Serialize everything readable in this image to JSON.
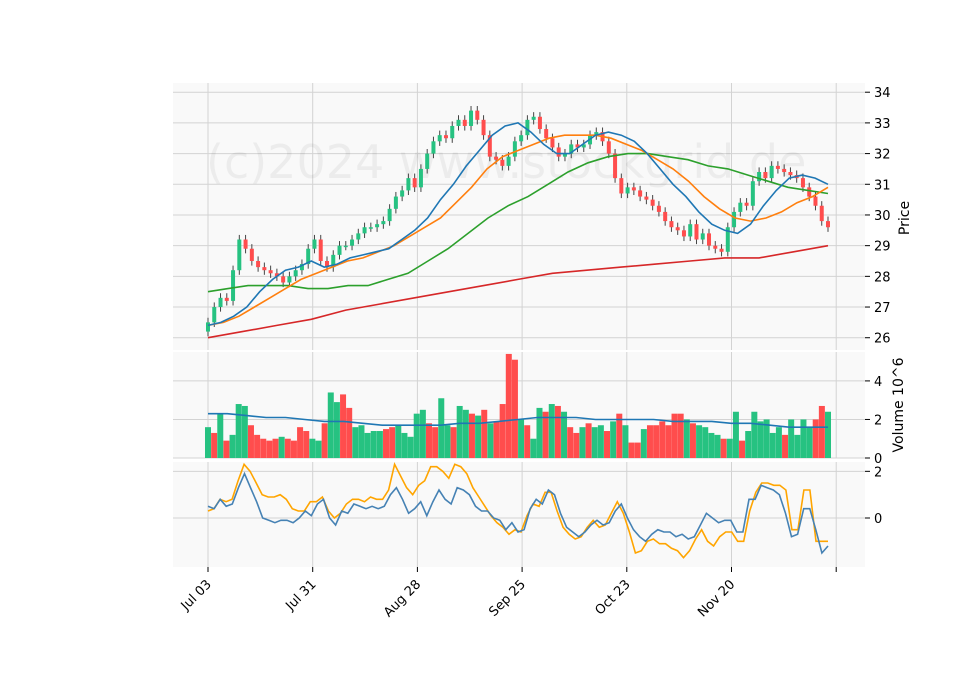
{
  "watermark": "(c)2024 www.stockgrid.de",
  "colors": {
    "up": "#26c281",
    "down": "#ff4d4d",
    "ma10": "#1f77b4",
    "ma20": "#ff7f0e",
    "ma50": "#2ca02c",
    "ma200": "#d62728",
    "vol_ma": "#1f77b4",
    "ind_fast": "#4682b4",
    "ind_slow": "#ffa500",
    "grid": "#d3d3d3",
    "panel_bg": "#f9f9f9"
  },
  "chart_data": {
    "type": "candlestick",
    "x_ticks": [
      "Jul 03",
      "Jul 31",
      "Aug 28",
      "Sep 25",
      "Oct 23",
      "Nov 20"
    ],
    "price_panel": {
      "ylabel": "Price",
      "ylim": [
        25.6,
        34.3
      ],
      "yticks": [
        "26",
        "27",
        "28",
        "29",
        "30",
        "31",
        "32",
        "33",
        "34"
      ],
      "close_path": [
        26.5,
        27.0,
        27.3,
        27.2,
        28.2,
        29.2,
        28.9,
        28.5,
        28.3,
        28.2,
        28.1,
        28.0,
        27.8,
        28.0,
        28.2,
        28.4,
        28.9,
        29.2,
        28.5,
        28.3,
        28.7,
        29.0,
        29.0,
        29.2,
        29.4,
        29.6,
        29.6,
        29.7,
        29.8,
        30.2,
        30.6,
        30.8,
        31.2,
        30.9,
        31.5,
        32.0,
        32.4,
        32.6,
        32.5,
        32.9,
        33.1,
        32.9,
        33.4,
        33.1,
        32.6,
        31.9,
        31.8,
        31.6,
        31.9,
        32.4,
        32.6,
        33.1,
        33.2,
        32.8,
        32.5,
        32.2,
        31.9,
        32.0,
        32.3,
        32.2,
        32.3,
        32.6,
        32.7,
        32.4,
        32.0,
        31.2,
        30.7,
        30.9,
        30.8,
        30.6,
        30.5,
        30.3,
        30.1,
        29.8,
        29.6,
        29.5,
        29.3,
        29.7,
        29.2,
        29.4,
        29.0,
        28.9,
        28.8,
        29.6,
        30.1,
        30.4,
        30.3,
        31.1,
        31.4,
        31.2,
        31.6,
        31.5,
        31.4,
        31.3,
        31.2,
        30.9,
        30.6,
        30.3,
        29.8,
        29.6
      ],
      "ma10": [
        26.4,
        26.5,
        26.7,
        27.0,
        27.5,
        27.9,
        28.2,
        28.3,
        28.5,
        28.3,
        28.4,
        28.6,
        28.7,
        28.8,
        28.9,
        29.2,
        29.5,
        29.9,
        30.5,
        31.0,
        31.6,
        32.1,
        32.6,
        32.9,
        33.0,
        32.7,
        32.3,
        32.0,
        32.0,
        32.3,
        32.6,
        32.7,
        32.6,
        32.4,
        32.0,
        31.5,
        31.0,
        30.6,
        30.1,
        29.7,
        29.5,
        29.4,
        29.7,
        30.3,
        30.8,
        31.2,
        31.3,
        31.2,
        31.0
      ],
      "ma20": [
        26.4,
        26.5,
        26.7,
        27.0,
        27.3,
        27.6,
        27.9,
        28.1,
        28.3,
        28.5,
        28.6,
        28.8,
        29.0,
        29.3,
        29.6,
        29.9,
        30.4,
        30.9,
        31.5,
        31.9,
        32.1,
        32.3,
        32.5,
        32.6,
        32.6,
        32.6,
        32.5,
        32.3,
        32.1,
        31.8,
        31.5,
        31.1,
        30.6,
        30.2,
        29.9,
        29.8,
        29.9,
        30.1,
        30.4,
        30.6,
        30.9
      ],
      "ma50": [
        27.5,
        27.6,
        27.7,
        27.7,
        27.7,
        27.6,
        27.6,
        27.7,
        27.7,
        27.9,
        28.1,
        28.5,
        28.9,
        29.4,
        29.9,
        30.3,
        30.6,
        31.0,
        31.4,
        31.7,
        31.9,
        32.0,
        32.0,
        31.9,
        31.8,
        31.6,
        31.5,
        31.3,
        31.1,
        30.9,
        30.8,
        30.7
      ],
      "ma200": [
        26.0,
        26.2,
        26.4,
        26.6,
        26.9,
        27.1,
        27.3,
        27.5,
        27.7,
        27.9,
        28.1,
        28.2,
        28.3,
        28.4,
        28.5,
        28.6,
        28.6,
        28.8,
        29.0
      ]
    },
    "volume_panel": {
      "ylabel": "Volume  10^6",
      "ylim": [
        0,
        5.5
      ],
      "yticks": [
        "0",
        "2",
        "4"
      ],
      "volumes": [
        1.6,
        1.3,
        2.3,
        0.9,
        1.2,
        2.8,
        2.7,
        1.7,
        1.2,
        1.0,
        0.9,
        1.0,
        1.1,
        1.0,
        0.9,
        1.6,
        1.4,
        1.0,
        0.9,
        1.8,
        3.4,
        2.9,
        3.3,
        2.6,
        1.6,
        1.7,
        1.3,
        1.4,
        1.4,
        1.5,
        1.6,
        1.7,
        1.3,
        1.1,
        2.3,
        2.5,
        1.8,
        1.6,
        3.1,
        1.7,
        1.6,
        2.7,
        2.5,
        2.3,
        2.2,
        2.5,
        1.8,
        1.9,
        2.8,
        5.4,
        5.1,
        2.0,
        1.7,
        1.0,
        2.6,
        2.4,
        2.8,
        2.7,
        2.4,
        1.6,
        1.3,
        1.6,
        1.8,
        1.6,
        1.7,
        1.4,
        1.9,
        2.3,
        1.7,
        0.8,
        0.8,
        1.5,
        1.7,
        1.7,
        1.9,
        1.7,
        2.3,
        2.3,
        2.0,
        1.8,
        1.7,
        1.6,
        1.3,
        1.2,
        1.0,
        1.0,
        2.4,
        0.9,
        1.4,
        2.4,
        1.9,
        2.0,
        1.3,
        1.6,
        1.2,
        2.0,
        1.2,
        2.0,
        1.6,
        2.0,
        2.7,
        2.4
      ],
      "vol_up": [
        true,
        false,
        true,
        false,
        true,
        true,
        true,
        false,
        false,
        false,
        false,
        false,
        true,
        false,
        false,
        false,
        false,
        true,
        true,
        false,
        true,
        true,
        false,
        false,
        true,
        true,
        true,
        true,
        true,
        false,
        false,
        true,
        true,
        true,
        true,
        true,
        false,
        false,
        true,
        true,
        false,
        true,
        true,
        false,
        true,
        false,
        true,
        false,
        false,
        false,
        false,
        true,
        false,
        true,
        true,
        false,
        true,
        false,
        true,
        false,
        false,
        true,
        false,
        true,
        true,
        false,
        true,
        false,
        true,
        false,
        false,
        true,
        false,
        false,
        false,
        false,
        false,
        false,
        true,
        false,
        true,
        true,
        true,
        true,
        false,
        true,
        true,
        false,
        true,
        true,
        true,
        true,
        true,
        true,
        false,
        true,
        true,
        true,
        true,
        false,
        false,
        true
      ],
      "vol_ma": [
        2.3,
        2.3,
        2.2,
        2.1,
        2.1,
        2.0,
        1.9,
        1.9,
        1.8,
        1.7,
        1.7,
        1.7,
        1.7,
        1.8,
        1.8,
        1.9,
        2.0,
        2.1,
        2.1,
        2.1,
        2.0,
        2.0,
        2.0,
        2.0,
        1.9,
        1.9,
        1.9,
        1.8,
        1.8,
        1.7,
        1.6,
        1.6,
        1.6
      ]
    },
    "indicator_panel": {
      "ylim": [
        -2.1,
        2.4
      ],
      "yticks": [
        "0",
        "2"
      ],
      "fast": [
        0.5,
        0.4,
        0.8,
        0.5,
        0.6,
        1.3,
        1.9,
        1.3,
        0.7,
        0.0,
        -0.1,
        -0.2,
        -0.1,
        -0.1,
        -0.2,
        0.0,
        0.3,
        0.1,
        0.6,
        0.8,
        0.0,
        -0.3,
        0.3,
        0.2,
        0.6,
        0.5,
        0.4,
        0.5,
        0.4,
        0.5,
        1.0,
        1.3,
        0.8,
        0.2,
        0.4,
        0.7,
        0.1,
        0.7,
        1.2,
        0.8,
        0.6,
        1.3,
        1.2,
        1.0,
        0.5,
        0.3,
        0.3,
        0.0,
        -0.1,
        -0.5,
        -0.2,
        -0.6,
        -0.5,
        0.4,
        0.8,
        0.6,
        1.2,
        1.0,
        0.2,
        -0.4,
        -0.6,
        -0.8,
        -0.6,
        -0.3,
        -0.1,
        -0.3,
        -0.2,
        0.3,
        0.6,
        0.0,
        -0.5,
        -0.8,
        -1.0,
        -0.7,
        -0.5,
        -0.6,
        -0.6,
        -0.8,
        -0.7,
        -0.9,
        -0.8,
        -0.3,
        0.2,
        0.0,
        -0.2,
        -0.1,
        -0.1,
        -0.6,
        -0.6,
        0.8,
        0.8,
        1.4,
        1.3,
        1.2,
        1.0,
        0.2,
        -0.8,
        -0.7,
        0.4,
        0.4,
        -0.5,
        -1.5,
        -1.2
      ],
      "slow": [
        0.3,
        0.4,
        0.8,
        0.7,
        0.8,
        1.6,
        2.3,
        2.0,
        1.5,
        1.0,
        0.9,
        0.9,
        1.0,
        0.8,
        0.4,
        0.3,
        0.3,
        0.7,
        0.7,
        0.9,
        0.3,
        0.0,
        0.2,
        0.6,
        0.8,
        0.8,
        0.7,
        0.9,
        0.8,
        0.8,
        1.2,
        2.3,
        1.8,
        1.3,
        1.0,
        1.4,
        1.6,
        2.2,
        2.2,
        2.0,
        1.7,
        2.3,
        2.2,
        1.9,
        1.3,
        0.9,
        0.5,
        0.1,
        -0.2,
        -0.4,
        -0.7,
        -0.5,
        -0.6,
        0.1,
        0.6,
        0.5,
        1.1,
        1.1,
        0.3,
        -0.4,
        -0.7,
        -0.9,
        -0.8,
        -0.4,
        -0.1,
        -0.4,
        -0.3,
        0.2,
        0.7,
        0.2,
        -0.6,
        -1.5,
        -1.4,
        -1.0,
        -0.9,
        -1.1,
        -1.1,
        -1.3,
        -1.4,
        -1.7,
        -1.4,
        -0.9,
        -0.5,
        -1.0,
        -1.2,
        -0.8,
        -0.6,
        -0.6,
        -1.0,
        -1.0,
        0.3,
        1.1,
        1.5,
        1.5,
        1.4,
        1.4,
        1.2,
        -0.5,
        -0.5,
        1.2,
        1.2,
        -1.0,
        -1.0,
        -1.0
      ]
    }
  }
}
